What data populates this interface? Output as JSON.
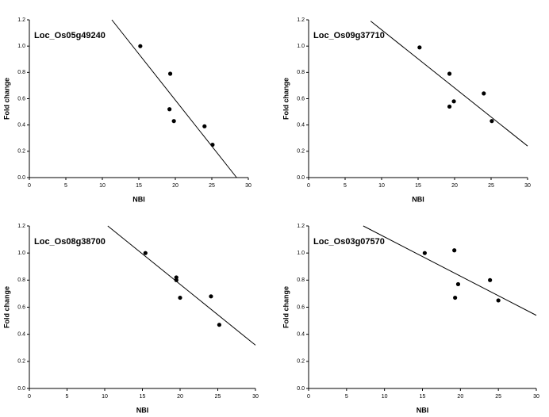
{
  "chart_data": [
    {
      "type": "scatter",
      "annotation": "Loc_Os05g49240",
      "xlabel": "NBI",
      "ylabel": "Fold change",
      "x": [
        15.2,
        19.3,
        19.2,
        19.8,
        24.0,
        25.1
      ],
      "values": [
        1.0,
        0.79,
        0.52,
        0.43,
        0.39,
        0.25
      ],
      "trendline": {
        "x": [
          11.3,
          28.4
        ],
        "y": [
          1.2,
          0.0
        ]
      },
      "color": "#000000",
      "xlim": [
        0,
        30
      ],
      "ylim": [
        0,
        1.2
      ],
      "xticks": [
        0,
        5,
        10,
        15,
        20,
        25,
        30
      ],
      "yticks": [
        {
          "value": 0,
          "label": "0.0"
        },
        {
          "value": 0.2,
          "label": "0.2"
        },
        {
          "value": 0.4,
          "label": "0.4"
        },
        {
          "value": 0.6,
          "label": "0.6"
        },
        {
          "value": 0.8,
          "label": "0.8"
        },
        {
          "value": 1.0,
          "label": "1.0"
        },
        {
          "value": 1.2,
          "label": "1.2"
        }
      ]
    },
    {
      "type": "scatter",
      "annotation": "Loc_Os09g37710",
      "xlabel": "NBI",
      "ylabel": "Fold change",
      "x": [
        15.2,
        19.3,
        19.9,
        19.3,
        24.0,
        25.1
      ],
      "values": [
        0.99,
        0.79,
        0.58,
        0.54,
        0.64,
        0.43
      ],
      "trendline": {
        "x": [
          8.5,
          30
        ],
        "y": [
          1.19,
          0.24
        ]
      },
      "color": "#000000",
      "xlim": [
        0,
        30
      ],
      "ylim": [
        0,
        1.2
      ],
      "xticks": [
        0,
        5,
        10,
        15,
        20,
        25,
        30
      ],
      "yticks": [
        {
          "value": 0,
          "label": "0.0"
        },
        {
          "value": 0.2,
          "label": "0.2"
        },
        {
          "value": 0.4,
          "label": "0.4"
        },
        {
          "value": 0.6,
          "label": "0.6"
        },
        {
          "value": 0.8,
          "label": "0.8"
        },
        {
          "value": 1.0,
          "label": "1.0"
        },
        {
          "value": 1.2,
          "label": "1.2"
        }
      ]
    },
    {
      "type": "scatter",
      "annotation": "Loc_Os08g38700",
      "xlabel": "NBI",
      "ylabel": "Fold change",
      "x": [
        15.4,
        19.5,
        19.5,
        20.0,
        24.1,
        25.2
      ],
      "values": [
        1.0,
        0.82,
        0.8,
        0.67,
        0.68,
        0.47
      ],
      "trendline": {
        "x": [
          10.4,
          30
        ],
        "y": [
          1.2,
          0.32
        ]
      },
      "color": "#000000",
      "xlim": [
        0,
        30
      ],
      "ylim": [
        0,
        1.2
      ],
      "xticks": [
        0,
        5,
        10,
        15,
        20,
        25,
        30
      ],
      "yticks": [
        {
          "value": 0,
          "label": "0.0"
        },
        {
          "value": 0.2,
          "label": "0.2"
        },
        {
          "value": 0.4,
          "label": "0.4"
        },
        {
          "value": 0.6,
          "label": "0.6"
        },
        {
          "value": 0.8,
          "label": "0.8"
        },
        {
          "value": 1.0,
          "label": "1.0"
        },
        {
          "value": 1.2,
          "label": "1.2"
        }
      ]
    },
    {
      "type": "scatter",
      "annotation": "Loc_Os03g07570",
      "xlabel": "NBI",
      "ylabel": "Fold change",
      "x": [
        15.3,
        19.2,
        19.7,
        19.3,
        23.9,
        25.0
      ],
      "values": [
        1.0,
        1.02,
        0.77,
        0.67,
        0.8,
        0.65
      ],
      "trendline": {
        "x": [
          7.2,
          30
        ],
        "y": [
          1.2,
          0.54
        ]
      },
      "color": "#000000",
      "xlim": [
        0,
        30
      ],
      "ylim": [
        0,
        1.2
      ],
      "xticks": [
        0,
        5,
        10,
        15,
        20,
        25,
        30
      ],
      "yticks": [
        {
          "value": 0,
          "label": "0.0"
        },
        {
          "value": 0.2,
          "label": "0.2"
        },
        {
          "value": 0.4,
          "label": "0.4"
        },
        {
          "value": 0.6,
          "label": "0.6"
        },
        {
          "value": 0.8,
          "label": "0.8"
        },
        {
          "value": 1.0,
          "label": "1.0"
        },
        {
          "value": 1.2,
          "label": "1.2"
        }
      ]
    }
  ]
}
